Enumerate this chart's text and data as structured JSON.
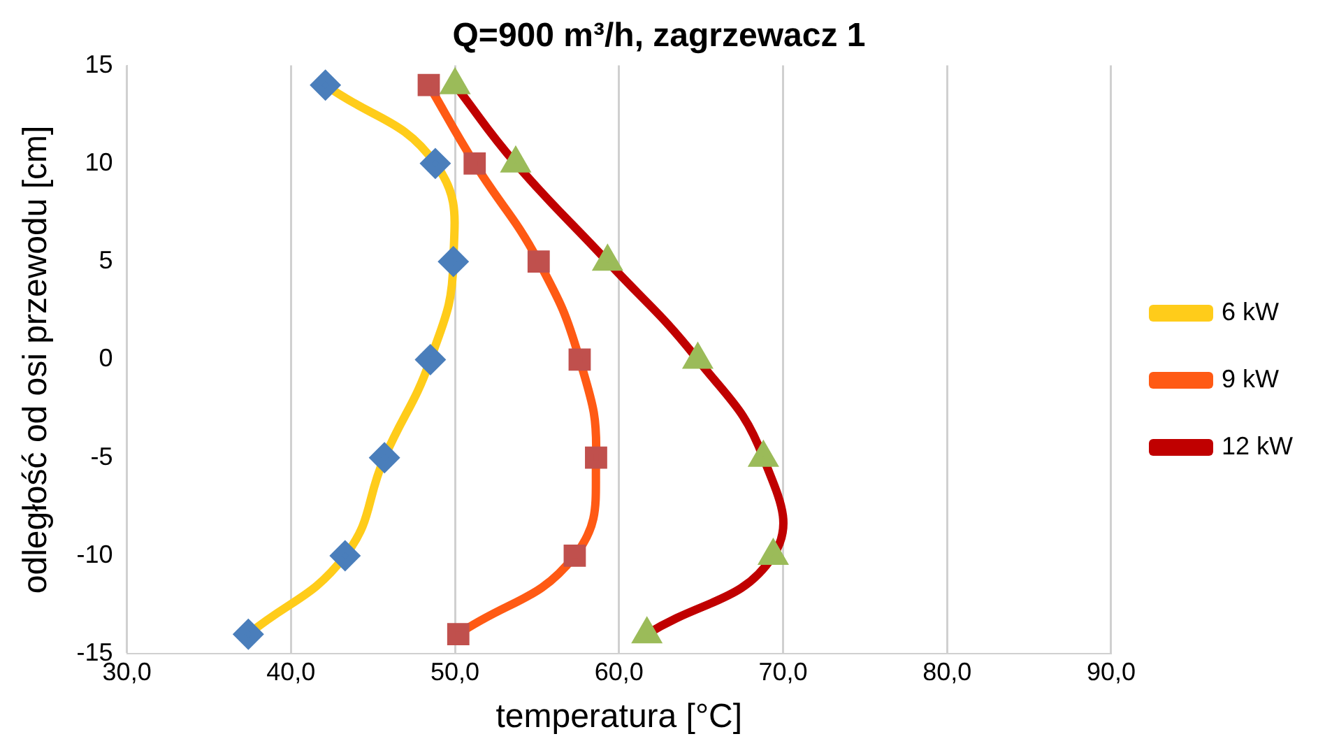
{
  "chart_data": {
    "type": "line",
    "title": "Q=900 m³/h, zagrzewacz 1",
    "xlabel": "temperatura [°C]",
    "ylabel": "odległość od osi przewodu [cm]",
    "series": [
      {
        "name": "6 kW",
        "color": "#ffcc1a",
        "marker": "diamond",
        "colors": [
          "#4a7ebb",
          "#4a7ebb",
          "#4a7ebb",
          "#4a7ebb",
          "#4a7ebb",
          "#4a7ebb",
          "#4a7ebb"
        ],
        "x": [
          42.1,
          48.8,
          49.9,
          48.5,
          45.7,
          43.3,
          37.4
        ],
        "values": [
          14,
          10,
          5,
          0,
          -5,
          -10,
          -14
        ]
      },
      {
        "name": "9 kW",
        "color": "#ff5a14",
        "marker": "square",
        "colors": [
          "#c0504d",
          "#c0504d",
          "#c0504d",
          "#c0504d",
          "#c0504d",
          "#c0504d",
          "#c0504d"
        ],
        "x": [
          48.4,
          51.2,
          55.1,
          57.6,
          58.6,
          57.3,
          50.2
        ],
        "values": [
          14,
          10,
          5,
          0,
          -5,
          -10,
          -14
        ]
      },
      {
        "name": "12 kW",
        "color": "#c00000",
        "marker": "triangle",
        "colors": [
          "#9bbb59",
          "#9bbb59",
          "#9bbb59",
          "#9bbb59",
          "#9bbb59",
          "#9bbb59",
          "#9bbb59"
        ],
        "x": [
          50.0,
          53.7,
          59.3,
          64.8,
          68.8,
          69.4,
          61.7
        ],
        "values": [
          14,
          10,
          5,
          0,
          -5,
          -10,
          -14
        ]
      }
    ],
    "xlim": [
      30,
      90
    ],
    "xticks": [
      {
        "value": 30,
        "label": "30,0"
      },
      {
        "value": 40,
        "label": "40,0"
      },
      {
        "value": 50,
        "label": "50,0"
      },
      {
        "value": 60,
        "label": "60,0"
      },
      {
        "value": 70,
        "label": "70,0"
      },
      {
        "value": 80,
        "label": "80,0"
      },
      {
        "value": 90,
        "label": "90,0"
      }
    ],
    "ylim": [
      -15,
      15
    ],
    "yticks": [
      -15,
      -10,
      -5,
      0,
      5,
      10,
      15
    ],
    "grid": "x",
    "legend": "right"
  }
}
